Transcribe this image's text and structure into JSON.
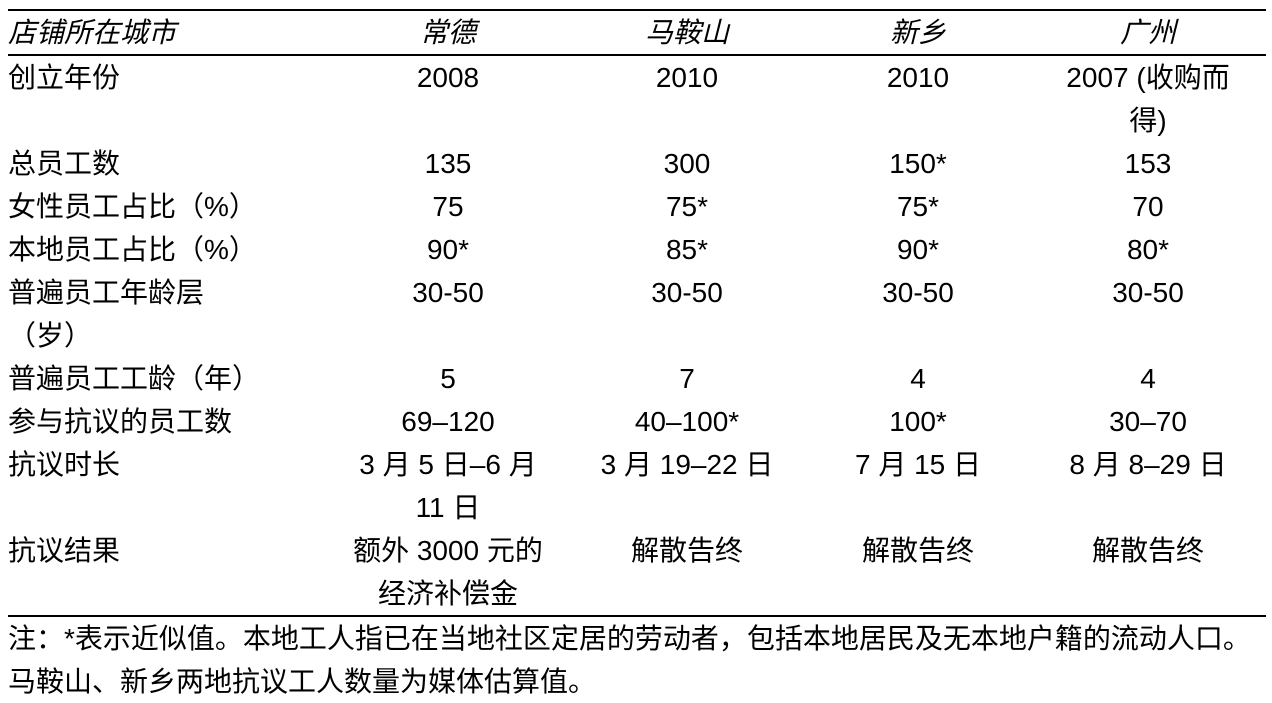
{
  "table": {
    "header": [
      "店铺所在城市",
      "常德",
      "马鞍山",
      "新乡",
      "广州"
    ],
    "rows": [
      {
        "label": "创立年份",
        "values": [
          "2008",
          "2010",
          "2010",
          "2007 (收购而\n得)"
        ]
      },
      {
        "label": "总员工数",
        "values": [
          "135",
          "300",
          "150*",
          "153"
        ]
      },
      {
        "label": "女性员工占比（%）",
        "values": [
          "75",
          "75*",
          "75*",
          "70"
        ]
      },
      {
        "label": "本地员工占比（%）",
        "values": [
          "90*",
          "85*",
          "90*",
          "80*"
        ]
      },
      {
        "label": "普遍员工年龄层\n（岁）",
        "values": [
          "30-50",
          "30-50",
          "30-50",
          "30-50"
        ]
      },
      {
        "label": "普遍员工工龄（年）",
        "values": [
          "5",
          "7",
          "4",
          "4"
        ]
      },
      {
        "label": "参与抗议的员工数",
        "values": [
          "69–120",
          "40–100*",
          "100*",
          "30–70"
        ]
      },
      {
        "label": "抗议时长",
        "values": [
          "3 月 5 日–6 月\n11 日",
          "3 月 19–22 日",
          "7 月 15 日",
          "8 月 8–29 日"
        ]
      },
      {
        "label": "抗议结果",
        "values": [
          "额外 3000 元的\n经济补偿金",
          "解散告终",
          "解散告终",
          "解散告终"
        ]
      }
    ],
    "note": "注：*表示近似值。本地工人指已在当地社区定居的劳动者，包括本地居民及无本地户籍的流动人口。\n马鞍山、新乡两地抗议工人数量为媒体估算值。"
  }
}
